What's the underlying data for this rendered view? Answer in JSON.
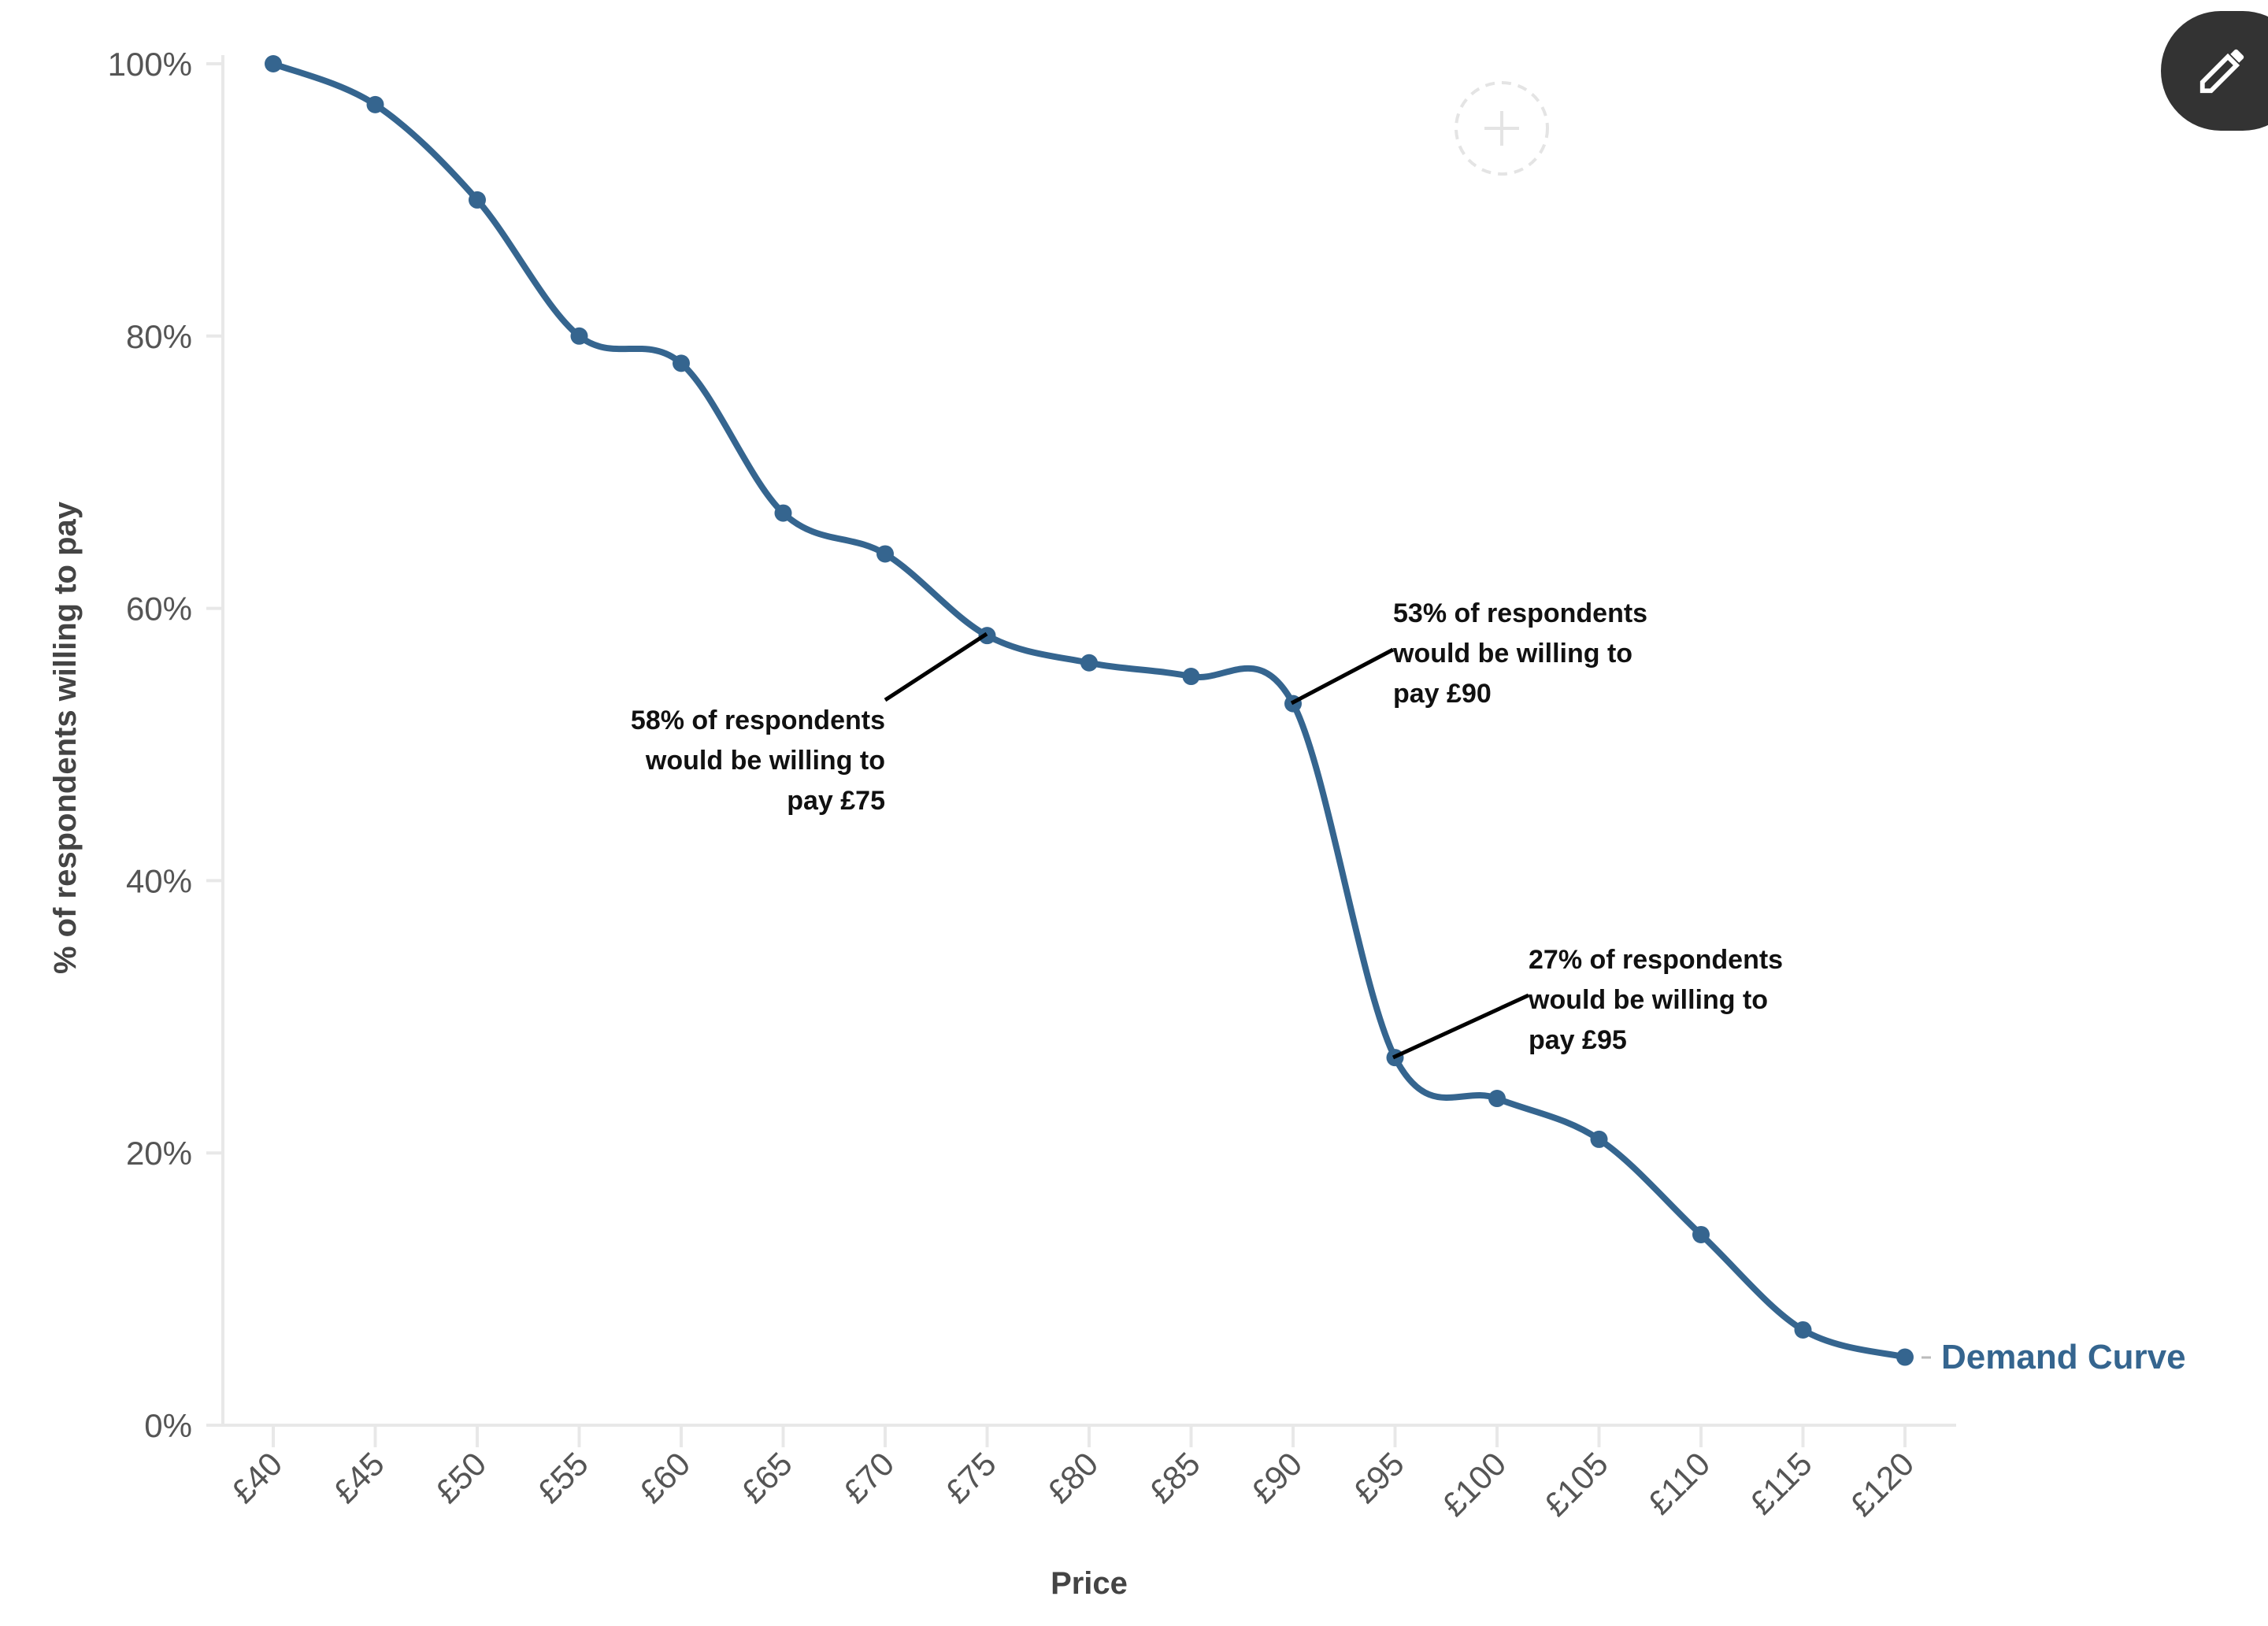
{
  "chart_data": {
    "type": "line",
    "xlabel": "Price",
    "ylabel": "% of respondents willing to pay",
    "categories": [
      "£40",
      "£45",
      "£50",
      "£55",
      "£60",
      "£65",
      "£70",
      "£75",
      "£80",
      "£85",
      "£90",
      "£95",
      "£100",
      "£105",
      "£110",
      "£115",
      "£120"
    ],
    "series": [
      {
        "name": "Demand Curve",
        "values": [
          100,
          97,
          90,
          80,
          78,
          67,
          64,
          58,
          56,
          55,
          53,
          27,
          24,
          21,
          14,
          7,
          5
        ],
        "color": "#35658f"
      }
    ],
    "ylim": [
      0,
      100
    ],
    "yticks": [
      "0%",
      "20%",
      "40%",
      "60%",
      "80%",
      "100%"
    ],
    "grid": false,
    "legend": "end-of-line label",
    "annotations": [
      {
        "target": "£75",
        "lines": [
          "58% of respondents",
          "would be willing to",
          "pay £75"
        ]
      },
      {
        "target": "£90",
        "lines": [
          "53% of respondents",
          "would be willing to",
          "pay £90"
        ]
      },
      {
        "target": "£95",
        "lines": [
          "27% of respondents",
          "would be willing to",
          "pay £95"
        ]
      }
    ]
  },
  "toolbar": {
    "edit_icon": "pencil-icon",
    "add_icon": "plus-circle-icon"
  }
}
